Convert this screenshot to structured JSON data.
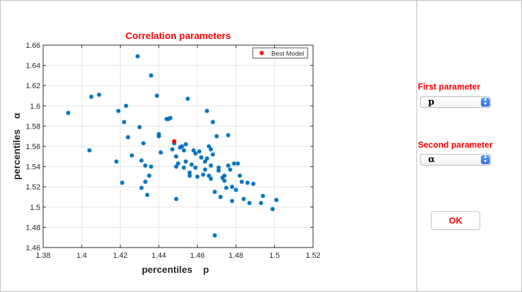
{
  "controls": {
    "first_label": "First parameter",
    "first_value": "p",
    "second_label": "Second parameter",
    "second_value": "α",
    "ok_label": "OK"
  },
  "colors": {
    "accent_red": "#ff0000",
    "marker_blue": "#0072bd",
    "best_red": "#ff0000"
  },
  "chart_data": {
    "type": "scatter",
    "title": "Correlation parameters",
    "xlabel": "percentiles    p",
    "ylabel": "percentiles    α",
    "xlim": [
      1.38,
      1.52
    ],
    "ylim": [
      1.46,
      1.66
    ],
    "xticks": [
      "1.38",
      "1.4",
      "1.42",
      "1.44",
      "1.46",
      "1.48",
      "1.5",
      "1.52"
    ],
    "yticks": [
      "1.46",
      "1.48",
      "1.5",
      "1.52",
      "1.54",
      "1.56",
      "1.58",
      "1.6",
      "1.62",
      "1.64",
      "1.66"
    ],
    "grid": true,
    "legend": {
      "label": "Best Model",
      "placement": "top-right"
    },
    "best_model": [
      1.448,
      1.565
    ],
    "points": [
      [
        1.393,
        1.593
      ],
      [
        1.404,
        1.556
      ],
      [
        1.405,
        1.609
      ],
      [
        1.409,
        1.611
      ],
      [
        1.418,
        1.545
      ],
      [
        1.419,
        1.595
      ],
      [
        1.421,
        1.524
      ],
      [
        1.422,
        1.584
      ],
      [
        1.423,
        1.6
      ],
      [
        1.424,
        1.569
      ],
      [
        1.426,
        1.551
      ],
      [
        1.429,
        1.649
      ],
      [
        1.43,
        1.579
      ],
      [
        1.431,
        1.519
      ],
      [
        1.431,
        1.546
      ],
      [
        1.432,
        1.563
      ],
      [
        1.433,
        1.541
      ],
      [
        1.433,
        1.525
      ],
      [
        1.434,
        1.512
      ],
      [
        1.435,
        1.531
      ],
      [
        1.436,
        1.54
      ],
      [
        1.436,
        1.63
      ],
      [
        1.439,
        1.61
      ],
      [
        1.44,
        1.57
      ],
      [
        1.44,
        1.572
      ],
      [
        1.441,
        1.554
      ],
      [
        1.444,
        1.587
      ],
      [
        1.445,
        1.587
      ],
      [
        1.446,
        1.588
      ],
      [
        1.447,
        1.557
      ],
      [
        1.448,
        1.563
      ],
      [
        1.449,
        1.55
      ],
      [
        1.449,
        1.508
      ],
      [
        1.449,
        1.54
      ],
      [
        1.45,
        1.543
      ],
      [
        1.451,
        1.559
      ],
      [
        1.452,
        1.56
      ],
      [
        1.453,
        1.556
      ],
      [
        1.453,
        1.539
      ],
      [
        1.454,
        1.545
      ],
      [
        1.454,
        1.562
      ],
      [
        1.455,
        1.607
      ],
      [
        1.456,
        1.531
      ],
      [
        1.456,
        1.534
      ],
      [
        1.457,
        1.542
      ],
      [
        1.458,
        1.556
      ],
      [
        1.459,
        1.553
      ],
      [
        1.459,
        1.539
      ],
      [
        1.46,
        1.53
      ],
      [
        1.461,
        1.555
      ],
      [
        1.462,
        1.549
      ],
      [
        1.463,
        1.532
      ],
      [
        1.464,
        1.537
      ],
      [
        1.464,
        1.545
      ],
      [
        1.465,
        1.548
      ],
      [
        1.465,
        1.595
      ],
      [
        1.466,
        1.531
      ],
      [
        1.466,
        1.56
      ],
      [
        1.467,
        1.528
      ],
      [
        1.467,
        1.541
      ],
      [
        1.467,
        1.557
      ],
      [
        1.468,
        1.584
      ],
      [
        1.468,
        1.552
      ],
      [
        1.469,
        1.515
      ],
      [
        1.469,
        1.472
      ],
      [
        1.47,
        1.57
      ],
      [
        1.471,
        1.539
      ],
      [
        1.471,
        1.536
      ],
      [
        1.472,
        1.51
      ],
      [
        1.473,
        1.529
      ],
      [
        1.474,
        1.531
      ],
      [
        1.474,
        1.526
      ],
      [
        1.475,
        1.519
      ],
      [
        1.476,
        1.571
      ],
      [
        1.476,
        1.541
      ],
      [
        1.477,
        1.537
      ],
      [
        1.478,
        1.506
      ],
      [
        1.478,
        1.52
      ],
      [
        1.479,
        1.543
      ],
      [
        1.48,
        1.517
      ],
      [
        1.481,
        1.543
      ],
      [
        1.482,
        1.531
      ],
      [
        1.483,
        1.525
      ],
      [
        1.484,
        1.508
      ],
      [
        1.486,
        1.524
      ],
      [
        1.487,
        1.504
      ],
      [
        1.489,
        1.523
      ],
      [
        1.493,
        1.504
      ],
      [
        1.494,
        1.511
      ],
      [
        1.499,
        1.498
      ],
      [
        1.501,
        1.507
      ]
    ]
  }
}
